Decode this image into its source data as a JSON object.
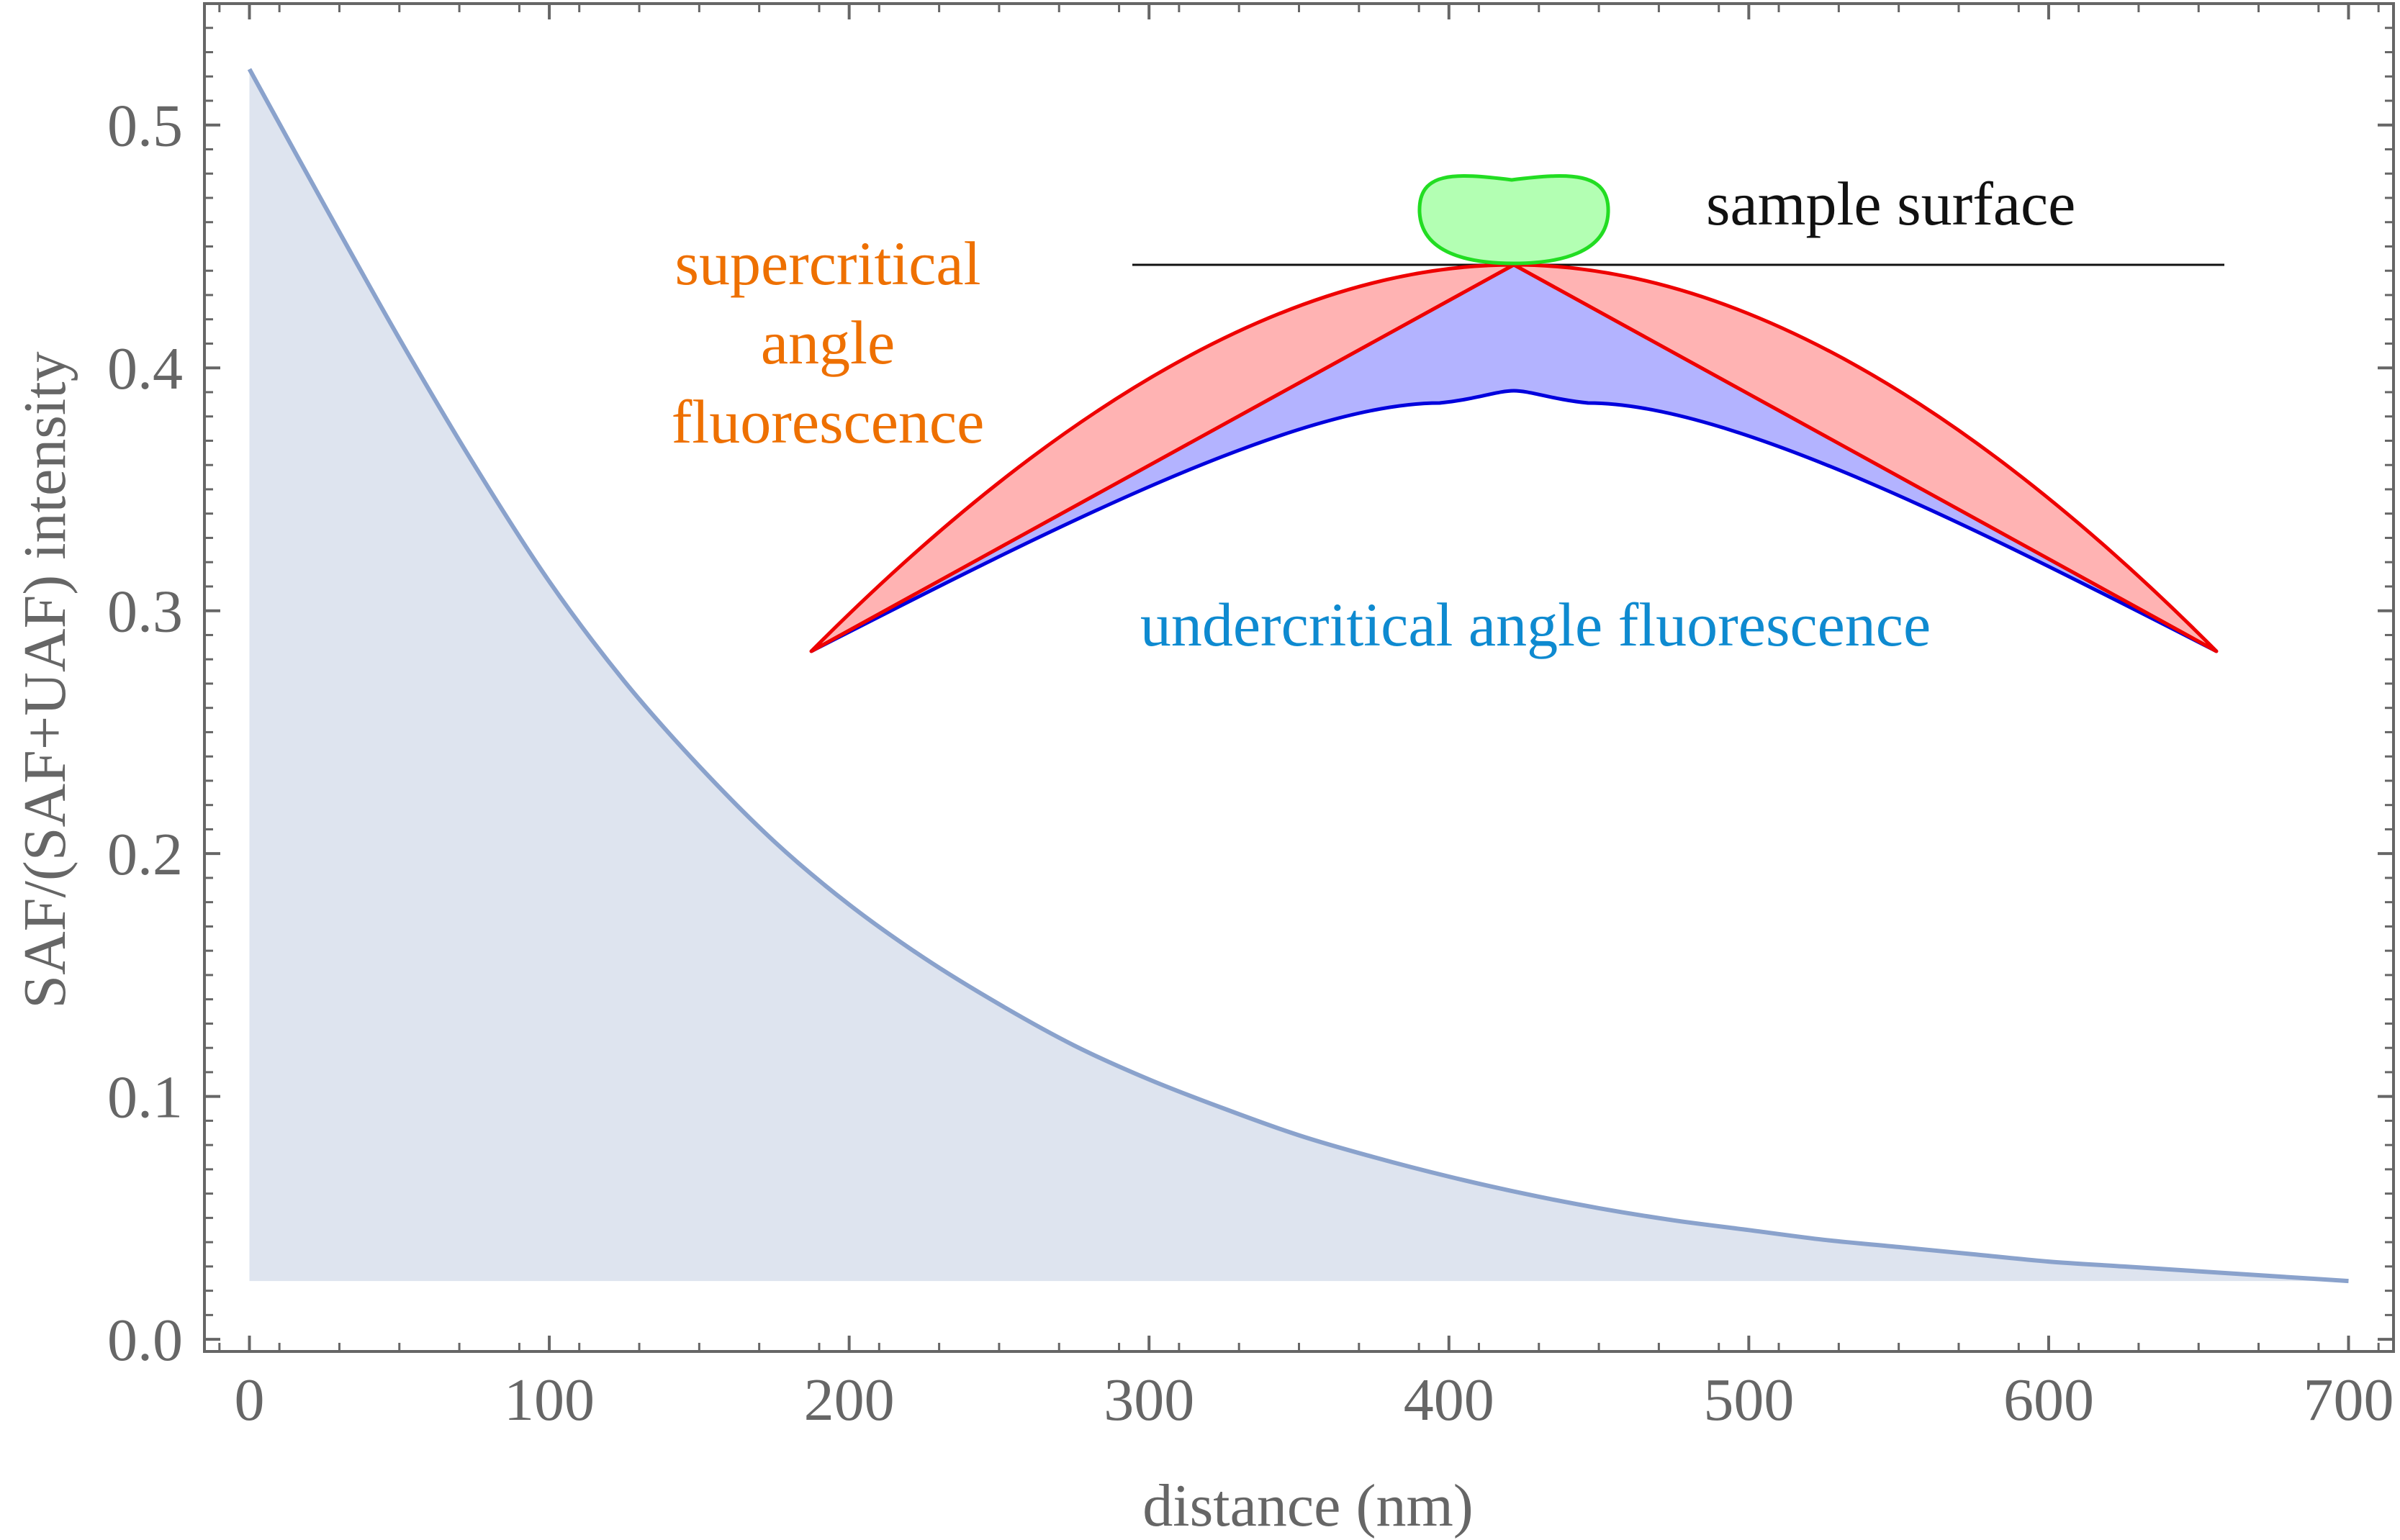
{
  "chart_data": {
    "type": "area",
    "title": "",
    "xlabel": "distance (nm)",
    "ylabel": "SAF/(SAF+UAF) intensity",
    "xlim": [
      -15,
      715
    ],
    "ylim": [
      -0.005,
      0.55
    ],
    "xticks": [
      0,
      100,
      200,
      300,
      400,
      500,
      600,
      700
    ],
    "xtick_labels": [
      "0",
      "100",
      "200",
      "300",
      "400",
      "500",
      "600",
      "700"
    ],
    "yticks": [
      0.0,
      0.1,
      0.2,
      0.3,
      0.4,
      0.5
    ],
    "ytick_labels": [
      "0.0",
      "0.1",
      "0.2",
      "0.3",
      "0.4",
      "0.5"
    ],
    "fill_baseline": 0.024,
    "grid": false,
    "legend": "none",
    "series": [
      {
        "x": [
          0,
          25,
          50,
          75,
          100,
          125,
          150,
          175,
          200,
          225,
          250,
          275,
          300,
          325,
          350,
          375,
          400,
          425,
          450,
          475,
          500,
          525,
          550,
          575,
          600,
          625,
          650,
          675,
          700
        ],
        "values": [
          0.523,
          0.467,
          0.412,
          0.36,
          0.312,
          0.271,
          0.236,
          0.205,
          0.179,
          0.157,
          0.138,
          0.121,
          0.107,
          0.095,
          0.084,
          0.075,
          0.067,
          0.06,
          0.054,
          0.049,
          0.045,
          0.041,
          0.038,
          0.035,
          0.032,
          0.03,
          0.028,
          0.026,
          0.024
        ],
        "color": "#8aa2cc",
        "fill_color": "#dee4ef"
      }
    ],
    "annotations": {
      "sample_surface": "sample surface",
      "supercritical_line1": "supercritical",
      "supercritical_line2": "angle",
      "supercritical_line3": "fluorescence",
      "undercritical": "undercritical angle fluorescence"
    }
  },
  "colors": {
    "curve": "#8aa2cc",
    "area_fill": "#dee4ef",
    "axes": "#666666",
    "supercritical_text": "#ee7000",
    "undercritical_text": "#0e8ad0",
    "sample_surface_text": "#111111",
    "saf_lobe_fill": "#ffb3b3",
    "saf_lobe_stroke": "#ee0000",
    "uaf_lobe_fill": "#b3b3ff",
    "uaf_lobe_stroke": "#0000dd",
    "sample_fill": "#b3ffb3",
    "sample_stroke": "#22dd22"
  }
}
